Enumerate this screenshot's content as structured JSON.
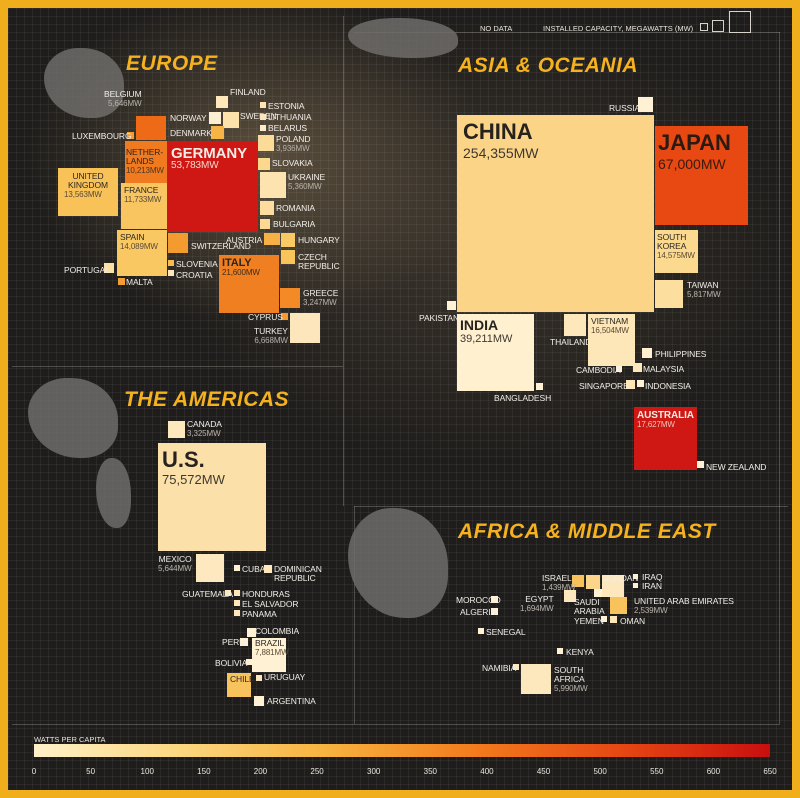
{
  "legend": {
    "no_data": "NO DATA",
    "capacity": "INSTALLED CAPACITY, MEGAWATTS (MW)",
    "watts_per_capita": "WATTS PER CAPITA",
    "scale_ticks": [
      "0",
      "50",
      "100",
      "150",
      "200",
      "250",
      "300",
      "350",
      "400",
      "450",
      "500",
      "550",
      "600",
      "650"
    ],
    "scale_colors": [
      "#fff1c9",
      "#fbd77f",
      "#f7b23e",
      "#f27b1d",
      "#e54713",
      "#c80f0f"
    ]
  },
  "regions": {
    "europe": "EUROPE",
    "asia": "ASIA & OCEANIA",
    "americas": "THE AMERICAS",
    "africa": "AFRICA & MIDDLE EAST"
  },
  "countries": {
    "germany": {
      "name": "GERMANY",
      "value": "53,783MW",
      "color": "#cf1714"
    },
    "netherlands": {
      "name": "NETHER-LANDS",
      "value": "10,213MW",
      "color": "#ef7a1f"
    },
    "belgium": {
      "name": "BELGIUM",
      "value": "5,646MW",
      "color": "#ee6a17"
    },
    "luxembourg": {
      "name": "LUXEMBOURG",
      "value": "",
      "color": "#f49c2f"
    },
    "united_kingdom": {
      "name": "UNITED KINGDOM",
      "value": "13,563MW",
      "color": "#f8c258"
    },
    "france": {
      "name": "FRANCE",
      "value": "11,733MW",
      "color": "#f8c560"
    },
    "spain": {
      "name": "SPAIN",
      "value": "14,089MW",
      "color": "#f9c862"
    },
    "portugal": {
      "name": "PORTUGAL",
      "value": "",
      "color": "#fbe0a4"
    },
    "malta": {
      "name": "MALTA",
      "value": "",
      "color": "#f29e34"
    },
    "italy": {
      "name": "ITALY",
      "value": "21,600MW",
      "color": "#ef7f20"
    },
    "switzerland": {
      "name": "SWITZERLAND",
      "value": "",
      "color": "#f49b30"
    },
    "austria": {
      "name": "AUSTRIA",
      "value": "",
      "color": "#f6b046"
    },
    "slovenia": {
      "name": "SLOVENIA",
      "value": "",
      "color": "#f7bb4f"
    },
    "croatia": {
      "name": "CROATIA",
      "value": "",
      "color": "#fde8bd"
    },
    "finland": {
      "name": "FINLAND",
      "value": "",
      "color": "#fde7bb"
    },
    "norway": {
      "name": "NORWAY",
      "value": "",
      "color": "#fdf0d2"
    },
    "sweden": {
      "name": "SWEDEN",
      "value": "",
      "color": "#fde2ab"
    },
    "denmark": {
      "name": "DENMARK",
      "value": "",
      "color": "#f6b447"
    },
    "estonia": {
      "name": "ESTONIA",
      "value": "",
      "color": "#fde4b0"
    },
    "lithuania": {
      "name": "LITHUANIA",
      "value": "",
      "color": "#fde7b8"
    },
    "belarus": {
      "name": "BELARUS",
      "value": "",
      "color": "#fdeccb"
    },
    "poland": {
      "name": "POLAND",
      "value": "3,936MW",
      "color": "#fbdb97"
    },
    "slovakia": {
      "name": "SLOVAKIA",
      "value": "",
      "color": "#fbd88d"
    },
    "ukraine": {
      "name": "UKRAINE",
      "value": "5,360MW",
      "color": "#fde3b0"
    },
    "romania": {
      "name": "ROMANIA",
      "value": "",
      "color": "#fcdd9f"
    },
    "bulgaria": {
      "name": "BULGARIA",
      "value": "",
      "color": "#fbd993"
    },
    "hungary": {
      "name": "HUNGARY",
      "value": "",
      "color": "#f9c964"
    },
    "czech": {
      "name": "CZECH REPUBLIC",
      "value": "",
      "color": "#f9c55a"
    },
    "greece": {
      "name": "GREECE",
      "value": "3,247MW",
      "color": "#f38a25"
    },
    "cyprus": {
      "name": "CYPRUS",
      "value": "",
      "color": "#f49a2f"
    },
    "turkey": {
      "name": "TURKEY",
      "value": "6,668MW",
      "color": "#fde6bb"
    },
    "china": {
      "name": "CHINA",
      "value": "254,355MW",
      "color": "#fbd487"
    },
    "japan": {
      "name": "JAPAN",
      "value": "67,000MW",
      "color": "#e84812"
    },
    "russia": {
      "name": "RUSSIA",
      "value": "",
      "color": "#fff1d3"
    },
    "south_korea": {
      "name": "SOUTH KOREA",
      "value": "14,575MW",
      "color": "#fbd98f"
    },
    "taiwan": {
      "name": "TAIWAN",
      "value": "5,817MW",
      "color": "#fcdf9f"
    },
    "pakistan": {
      "name": "PAKISTAN",
      "value": "",
      "color": "#fff1d3"
    },
    "india": {
      "name": "INDIA",
      "value": "39,211MW",
      "color": "#fff0d0"
    },
    "bangladesh": {
      "name": "BANGLADESH",
      "value": "",
      "color": "#fff1d3"
    },
    "thailand": {
      "name": "THAILAND",
      "value": "",
      "color": "#fde7bb"
    },
    "vietnam": {
      "name": "VIETNAM",
      "value": "16,504MW",
      "color": "#fde6b8"
    },
    "philippines": {
      "name": "PHILIPPINES",
      "value": "",
      "color": "#fff0d0"
    },
    "cambodia": {
      "name": "CAMBODIA",
      "value": "",
      "color": "#fff1d3"
    },
    "malaysia": {
      "name": "MALAYSIA",
      "value": "",
      "color": "#fde8bd"
    },
    "singapore": {
      "name": "SINGAPORE",
      "value": "",
      "color": "#fde6b8"
    },
    "indonesia": {
      "name": "INDONESIA",
      "value": "",
      "color": "#fff1d3"
    },
    "australia": {
      "name": "AUSTRALIA",
      "value": "17,627MW",
      "color": "#cf1714"
    },
    "new_zealand": {
      "name": "NEW ZEALAND",
      "value": "",
      "color": "#fff1d3"
    },
    "canada": {
      "name": "CANADA",
      "value": "3,325MW",
      "color": "#fde8bd"
    },
    "us": {
      "name": "U.S.",
      "value": "75,572MW",
      "color": "#fbe0a9"
    },
    "mexico": {
      "name": "MEXICO",
      "value": "5,644MW",
      "color": "#fde8bf"
    },
    "cuba": {
      "name": "CUBA",
      "value": "",
      "color": "#fff1d3"
    },
    "dominican": {
      "name": "DOMINICAN REPUBLIC",
      "value": "",
      "color": "#fde8bd"
    },
    "guatemala": {
      "name": "GUATEMALA",
      "value": "",
      "color": "#fde8bd"
    },
    "honduras": {
      "name": "HONDURAS",
      "value": "",
      "color": "#fde6b8"
    },
    "el_salvador": {
      "name": "EL SALVADOR",
      "value": "",
      "color": "#fde6b8"
    },
    "panama": {
      "name": "PANAMA",
      "value": "",
      "color": "#fde8bd"
    },
    "colombia": {
      "name": "COLOMBIA",
      "value": "",
      "color": "#fff1d3"
    },
    "peru": {
      "name": "PERU",
      "value": "",
      "color": "#fff1d3"
    },
    "brazil": {
      "name": "BRAZIL",
      "value": "7,881MW",
      "color": "#fff1d3"
    },
    "bolivia": {
      "name": "BOLIVIA",
      "value": "",
      "color": "#fff1d3"
    },
    "chile": {
      "name": "CHILE",
      "value": "",
      "color": "#f8c35c"
    },
    "uruguay": {
      "name": "URUGUAY",
      "value": "",
      "color": "#fde8bd"
    },
    "argentina": {
      "name": "ARGENTINA",
      "value": "",
      "color": "#fff1d3"
    },
    "israel": {
      "name": "ISRAEL",
      "value": "1,439MW",
      "color": "#f8c15a"
    },
    "jordan": {
      "name": "JORDAN",
      "value": "",
      "color": "#fbd68a"
    },
    "iraq": {
      "name": "IRAQ",
      "value": "",
      "color": "#fff1d3"
    },
    "iran": {
      "name": "IRAN",
      "value": "",
      "color": "#fff1d3"
    },
    "morocco": {
      "name": "MOROCCO",
      "value": "",
      "color": "#fff1d3"
    },
    "algeria": {
      "name": "ALGERIA",
      "value": "",
      "color": "#fff1d3"
    },
    "egypt": {
      "name": "EGYPT",
      "value": "1,694MW",
      "color": "#fde8bd"
    },
    "saudi_arabia": {
      "name": "SAUDI ARABIA",
      "value": "",
      "color": "#fff1d3"
    },
    "uae": {
      "name": "UNITED ARAB EMIRATES",
      "value": "2,539MW",
      "color": "#f8c35c"
    },
    "yemen": {
      "name": "YEMEN",
      "value": "",
      "color": "#fff1d3"
    },
    "oman": {
      "name": "OMAN",
      "value": "",
      "color": "#fde6b8"
    },
    "senegal": {
      "name": "SENEGAL",
      "value": "",
      "color": "#fff1d3"
    },
    "kenya": {
      "name": "KENYA",
      "value": "",
      "color": "#fff1d3"
    },
    "namibia": {
      "name": "NAMIBIA",
      "value": "",
      "color": "#fde8bd"
    },
    "south_africa": {
      "name": "SOUTH AFRICA",
      "value": "5,990MW",
      "color": "#fde8bd"
    }
  }
}
